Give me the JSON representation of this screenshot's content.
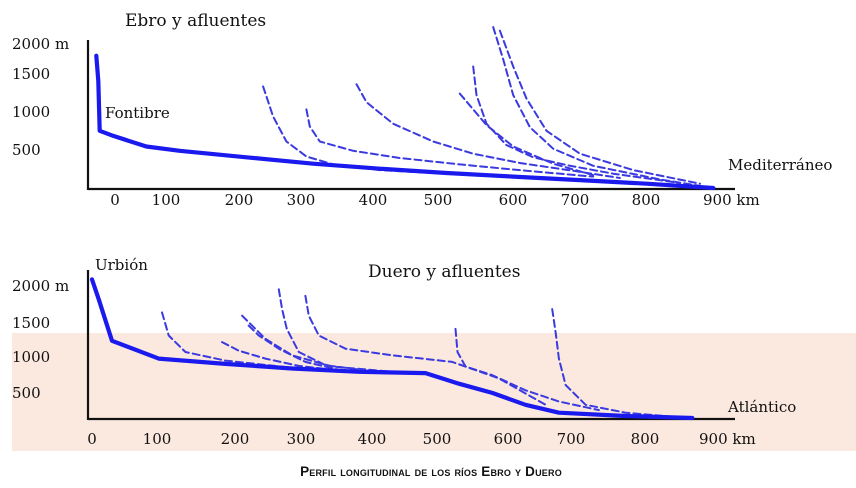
{
  "caption": "Perfil longitudinal de los ríos Ebro y Duero",
  "colors": {
    "main_river": "#1a1aee",
    "tributary": "#3a3ae0",
    "highlight_band": "#fbe9df",
    "text": "#111111"
  },
  "chart_data": [
    {
      "type": "line",
      "title": "Ebro y afluentes",
      "x_unit": "km",
      "x_ticks": [
        "0",
        "100",
        "200",
        "300",
        "400",
        "500",
        "600",
        "700",
        "800",
        "900 km"
      ],
      "y_ticks": [
        "2000 m",
        "1500",
        "1000",
        "500"
      ],
      "xlim": [
        0,
        900
      ],
      "ylim": [
        0,
        2000
      ],
      "annotations": {
        "source": "Fontibre",
        "mouth": "Mediterráneo"
      },
      "main": {
        "x": [
          -25,
          -22,
          -20,
          0,
          50,
          100,
          200,
          300,
          400,
          500,
          600,
          700,
          800,
          900
        ],
        "y": [
          1850,
          1500,
          800,
          730,
          580,
          520,
          430,
          340,
          270,
          210,
          160,
          110,
          60,
          0
        ]
      },
      "tributaries": [
        {
          "x": [
            225,
            240,
            260,
            290,
            330,
            400,
            500,
            600,
            700
          ],
          "y": [
            1420,
            1000,
            650,
            440,
            330,
            250,
            200,
            150,
            100
          ]
        },
        {
          "x": [
            290,
            295,
            310,
            360,
            430,
            520,
            620,
            720
          ],
          "y": [
            1100,
            860,
            650,
            520,
            420,
            330,
            240,
            160
          ]
        },
        {
          "x": [
            365,
            380,
            420,
            480,
            540,
            610,
            690,
            760
          ],
          "y": [
            1450,
            1200,
            900,
            650,
            480,
            350,
            240,
            140
          ]
        },
        {
          "x": [
            540,
            545,
            560,
            590,
            630,
            680,
            750,
            850
          ],
          "y": [
            1700,
            1300,
            900,
            600,
            430,
            320,
            200,
            70
          ]
        },
        {
          "x": [
            520,
            540,
            560,
            600,
            660,
            720
          ],
          "y": [
            1320,
            1100,
            880,
            580,
            340,
            180
          ]
        },
        {
          "x": [
            570,
            585,
            600,
            625,
            660,
            720,
            820,
            900
          ],
          "y": [
            2250,
            1800,
            1300,
            850,
            550,
            310,
            120,
            0
          ]
        },
        {
          "x": [
            580,
            600,
            620,
            650,
            700,
            780,
            880
          ],
          "y": [
            2200,
            1700,
            1250,
            800,
            480,
            250,
            60
          ]
        }
      ]
    },
    {
      "type": "line",
      "title": "Duero y afluentes",
      "x_unit": "km",
      "x_ticks": [
        "0",
        "100",
        "200",
        "300",
        "400",
        "500",
        "600",
        "700",
        "800",
        "900 km"
      ],
      "y_ticks": [
        "2000 m",
        "1500",
        "1000",
        "500"
      ],
      "xlim": [
        0,
        900
      ],
      "ylim": [
        0,
        2000
      ],
      "annotations": {
        "source": "Urbión",
        "mouth": "Atlántico"
      },
      "main": {
        "x": [
          0,
          10,
          30,
          100,
          200,
          300,
          400,
          500,
          550,
          600,
          650,
          700,
          800,
          900
        ],
        "y": [
          2100,
          1800,
          1170,
          900,
          820,
          750,
          700,
          680,
          520,
          380,
          200,
          80,
          30,
          0
        ]
      },
      "tributaries": [
        {
          "x": [
            105,
            115,
            140,
            200,
            300,
            400,
            500
          ],
          "y": [
            1600,
            1250,
            1000,
            870,
            760,
            700,
            680
          ]
        },
        {
          "x": [
            225,
            240,
            260,
            300,
            360,
            450
          ],
          "y": [
            1550,
            1400,
            1200,
            950,
            780,
            700
          ]
        },
        {
          "x": [
            235,
            250,
            280,
            320,
            370
          ],
          "y": [
            1400,
            1250,
            1050,
            850,
            730
          ]
        },
        {
          "x": [
            195,
            220,
            260,
            310,
            370
          ],
          "y": [
            1150,
            1020,
            900,
            790,
            720
          ]
        },
        {
          "x": [
            280,
            285,
            292,
            310,
            350,
            410,
            480
          ],
          "y": [
            1950,
            1650,
            1350,
            1000,
            800,
            720,
            690
          ]
        },
        {
          "x": [
            320,
            325,
            340,
            380,
            450,
            540,
            610,
            680
          ],
          "y": [
            1850,
            1550,
            1250,
            1050,
            950,
            850,
            600,
            200
          ]
        },
        {
          "x": [
            545,
            548,
            560,
            600,
            650,
            700,
            760
          ],
          "y": [
            1350,
            1000,
            780,
            650,
            420,
            250,
            120
          ]
        },
        {
          "x": [
            690,
            695,
            700,
            710,
            740,
            800,
            880
          ],
          "y": [
            1650,
            1300,
            900,
            500,
            200,
            80,
            10
          ]
        }
      ]
    }
  ]
}
